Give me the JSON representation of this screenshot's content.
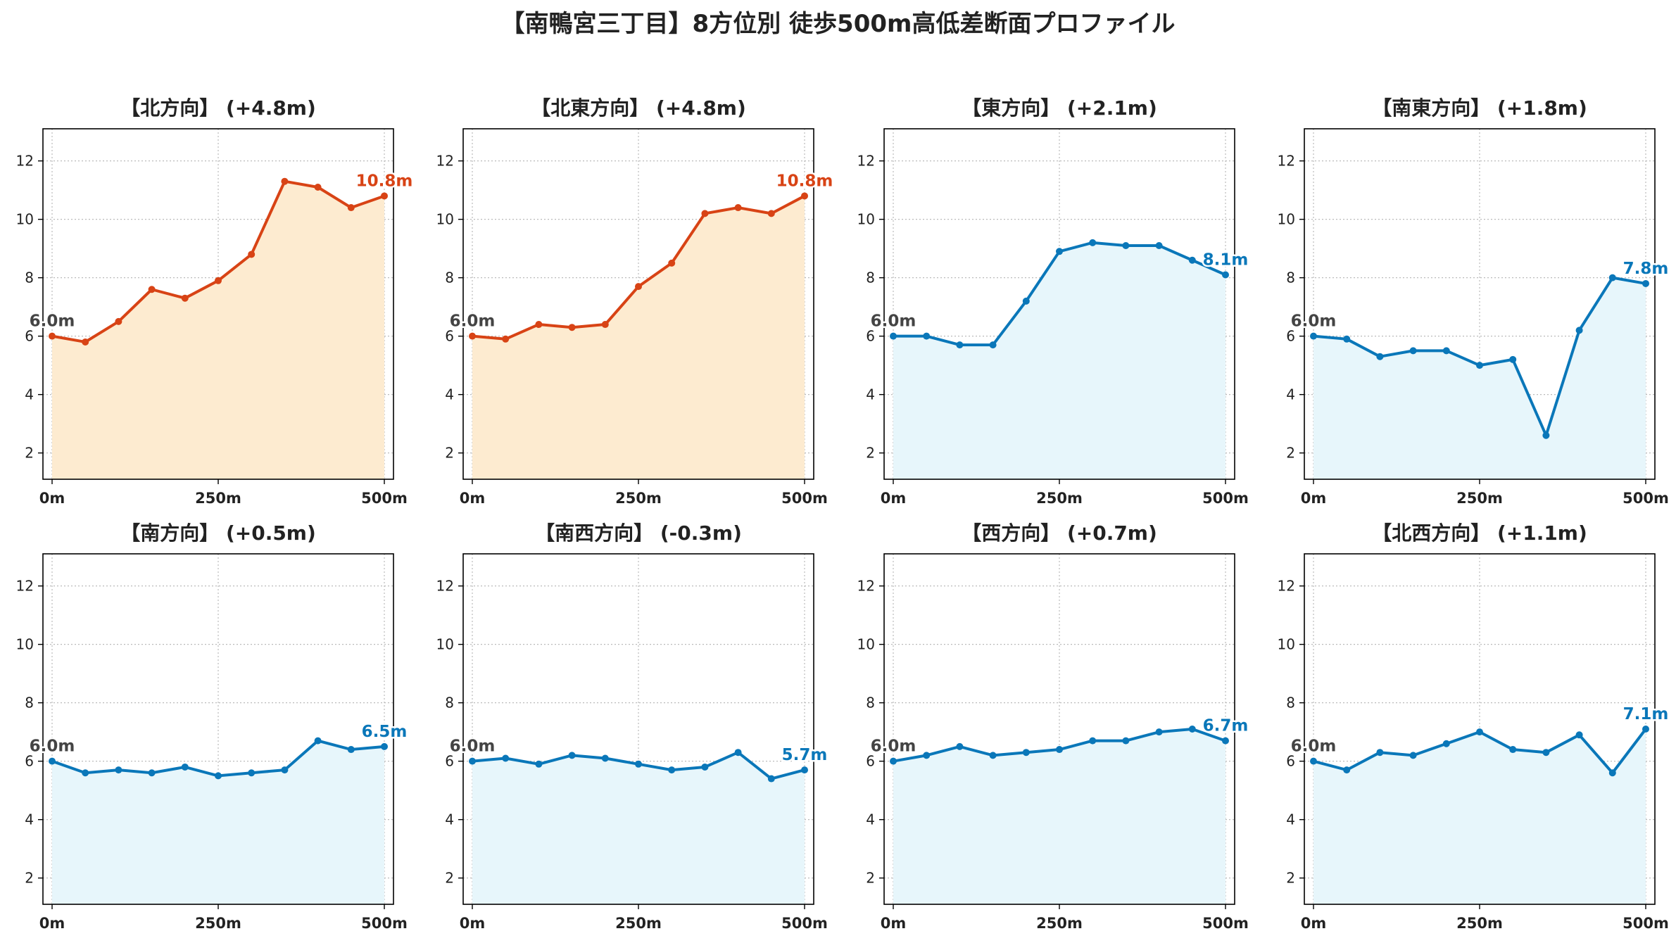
{
  "title": "【南鴨宮三丁目】8方位別 徒歩500m高低差断面プロファイル",
  "colors": {
    "uphill_line": "#d84315",
    "uphill_fill": "#fdebd0",
    "flat_line": "#0a77b9",
    "flat_fill": "#e7f6fb",
    "start_label": "#444444",
    "grid": "#bbbbbb"
  },
  "chart_data": [
    {
      "type": "area",
      "title": "【北方向】 (+4.8m)",
      "style": "uphill",
      "x": [
        0,
        50,
        100,
        150,
        200,
        250,
        300,
        350,
        400,
        450,
        500
      ],
      "y": [
        6.0,
        5.8,
        6.5,
        7.6,
        7.3,
        7.9,
        8.8,
        11.3,
        11.1,
        10.4,
        10.8
      ],
      "start_label": "6.0m",
      "end_label": "10.8m",
      "xticks": [
        "0m",
        "250m",
        "500m"
      ],
      "yticks": [
        2,
        4,
        6,
        8,
        10,
        12
      ],
      "ylim": [
        1.1,
        13.1
      ],
      "grid": true
    },
    {
      "type": "area",
      "title": "【北東方向】 (+4.8m)",
      "style": "uphill",
      "x": [
        0,
        50,
        100,
        150,
        200,
        250,
        300,
        350,
        400,
        450,
        500
      ],
      "y": [
        6.0,
        5.9,
        6.4,
        6.3,
        6.4,
        7.7,
        8.5,
        10.2,
        10.4,
        10.2,
        10.8
      ],
      "start_label": "6.0m",
      "end_label": "10.8m",
      "xticks": [
        "0m",
        "250m",
        "500m"
      ],
      "yticks": [
        2,
        4,
        6,
        8,
        10,
        12
      ],
      "ylim": [
        1.1,
        13.1
      ],
      "grid": true
    },
    {
      "type": "area",
      "title": "【東方向】 (+2.1m)",
      "style": "flat",
      "x": [
        0,
        50,
        100,
        150,
        200,
        250,
        300,
        350,
        400,
        450,
        500
      ],
      "y": [
        6.0,
        6.0,
        5.7,
        5.7,
        7.2,
        8.9,
        9.2,
        9.1,
        9.1,
        8.6,
        8.1
      ],
      "start_label": "6.0m",
      "end_label": "8.1m",
      "xticks": [
        "0m",
        "250m",
        "500m"
      ],
      "yticks": [
        2,
        4,
        6,
        8,
        10,
        12
      ],
      "ylim": [
        1.1,
        13.1
      ],
      "grid": true
    },
    {
      "type": "area",
      "title": "【南東方向】 (+1.8m)",
      "style": "flat",
      "x": [
        0,
        50,
        100,
        150,
        200,
        250,
        300,
        350,
        400,
        450,
        500
      ],
      "y": [
        6.0,
        5.9,
        5.3,
        5.5,
        5.5,
        5.0,
        5.2,
        2.6,
        6.2,
        8.0,
        7.8
      ],
      "start_label": "6.0m",
      "end_label": "7.8m",
      "xticks": [
        "0m",
        "250m",
        "500m"
      ],
      "yticks": [
        2,
        4,
        6,
        8,
        10,
        12
      ],
      "ylim": [
        1.1,
        13.1
      ],
      "grid": true
    },
    {
      "type": "area",
      "title": "【南方向】 (+0.5m)",
      "style": "flat",
      "x": [
        0,
        50,
        100,
        150,
        200,
        250,
        300,
        350,
        400,
        450,
        500
      ],
      "y": [
        6.0,
        5.6,
        5.7,
        5.6,
        5.8,
        5.5,
        5.6,
        5.7,
        6.7,
        6.4,
        6.5
      ],
      "start_label": "6.0m",
      "end_label": "6.5m",
      "xticks": [
        "0m",
        "250m",
        "500m"
      ],
      "yticks": [
        2,
        4,
        6,
        8,
        10,
        12
      ],
      "ylim": [
        1.1,
        13.1
      ],
      "grid": true
    },
    {
      "type": "area",
      "title": "【南西方向】 (-0.3m)",
      "style": "flat",
      "x": [
        0,
        50,
        100,
        150,
        200,
        250,
        300,
        350,
        400,
        450,
        500
      ],
      "y": [
        6.0,
        6.1,
        5.9,
        6.2,
        6.1,
        5.9,
        5.7,
        5.8,
        6.3,
        5.4,
        5.7
      ],
      "start_label": "6.0m",
      "end_label": "5.7m",
      "xticks": [
        "0m",
        "250m",
        "500m"
      ],
      "yticks": [
        2,
        4,
        6,
        8,
        10,
        12
      ],
      "ylim": [
        1.1,
        13.1
      ],
      "grid": true
    },
    {
      "type": "area",
      "title": "【西方向】 (+0.7m)",
      "style": "flat",
      "x": [
        0,
        50,
        100,
        150,
        200,
        250,
        300,
        350,
        400,
        450,
        500
      ],
      "y": [
        6.0,
        6.2,
        6.5,
        6.2,
        6.3,
        6.4,
        6.7,
        6.7,
        7.0,
        7.1,
        6.7
      ],
      "start_label": "6.0m",
      "end_label": "6.7m",
      "xticks": [
        "0m",
        "250m",
        "500m"
      ],
      "yticks": [
        2,
        4,
        6,
        8,
        10,
        12
      ],
      "ylim": [
        1.1,
        13.1
      ],
      "grid": true
    },
    {
      "type": "area",
      "title": "【北西方向】 (+1.1m)",
      "style": "flat",
      "x": [
        0,
        50,
        100,
        150,
        200,
        250,
        300,
        350,
        400,
        450,
        500
      ],
      "y": [
        6.0,
        5.7,
        6.3,
        6.2,
        6.6,
        7.0,
        6.4,
        6.3,
        6.9,
        5.6,
        7.1
      ],
      "start_label": "6.0m",
      "end_label": "7.1m",
      "xticks": [
        "0m",
        "250m",
        "500m"
      ],
      "yticks": [
        2,
        4,
        6,
        8,
        10,
        12
      ],
      "ylim": [
        1.1,
        13.1
      ],
      "grid": true
    }
  ]
}
